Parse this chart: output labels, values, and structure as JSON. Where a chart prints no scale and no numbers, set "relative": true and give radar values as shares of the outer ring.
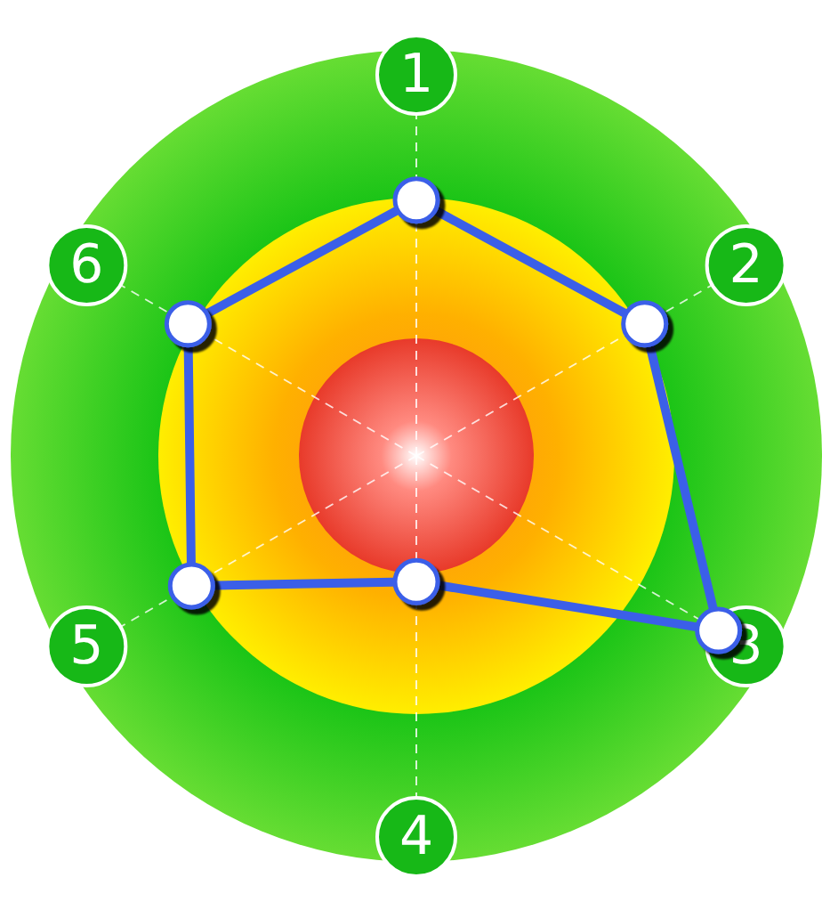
{
  "chart_data": {
    "type": "radar",
    "categories": [
      "1",
      "2",
      "3",
      "4",
      "5",
      "6"
    ],
    "relative": true,
    "grid": true,
    "marker": "circle",
    "line_style": "solid",
    "series": [
      {
        "color": "#3b5fe8",
        "values": [
          0.63,
          0.65,
          0.86,
          0.31,
          0.64,
          0.65
        ]
      }
    ]
  }
}
